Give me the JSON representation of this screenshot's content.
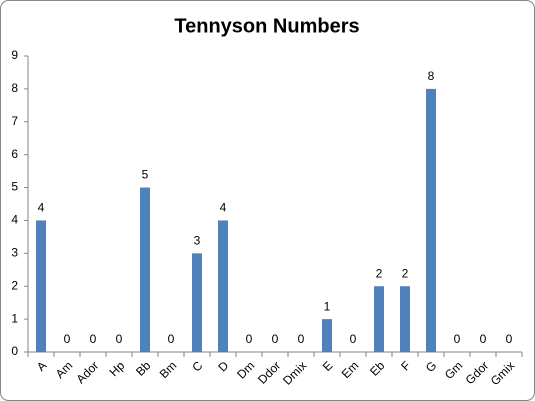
{
  "chart_data": {
    "type": "bar",
    "title": "Tennyson Numbers",
    "categories": [
      "A",
      "Am",
      "Ador",
      "Hp",
      "Bb",
      "Bm",
      "C",
      "D",
      "Dm",
      "Ddor",
      "Dmix",
      "E",
      "Em",
      "Eb",
      "F",
      "G",
      "Gm",
      "Gdor",
      "Gmix"
    ],
    "values": [
      4,
      0,
      0,
      0,
      5,
      0,
      3,
      4,
      0,
      0,
      0,
      1,
      0,
      2,
      2,
      8,
      0,
      0,
      0
    ],
    "color": "#4f81bd",
    "ylim": [
      0,
      9
    ],
    "yticks": [
      0,
      1,
      2,
      3,
      4,
      5,
      6,
      7,
      8,
      9
    ],
    "grid": false
  }
}
